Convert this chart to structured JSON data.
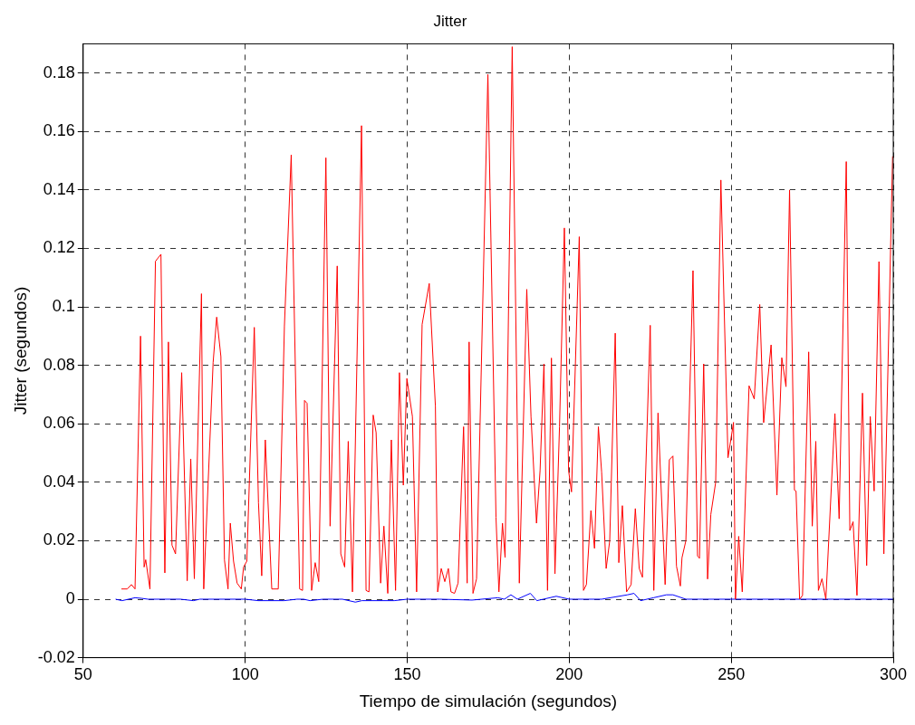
{
  "chart_data": {
    "type": "line",
    "title": "Jitter",
    "xlabel": "Tiempo de simulación (segundos)",
    "ylabel": "Jitter (segundos)",
    "xlim": [
      50,
      300
    ],
    "xticks": [
      50,
      100,
      150,
      200,
      250,
      300
    ],
    "ylim": [
      -0.02,
      0.19
    ],
    "yticks": [
      -0.02,
      0,
      0.02,
      0.04,
      0.06,
      0.08,
      0.1,
      0.12,
      0.14,
      0.16,
      0.18
    ],
    "grid": true,
    "legend": false,
    "marker": "none",
    "series": [
      {
        "color": "#ff0000",
        "x": [
          61.8,
          63.6,
          64.9,
          66,
          67.7,
          68.8,
          69.3,
          70.6,
          72.3,
          74,
          75.2,
          76.3,
          77.4,
          78.5,
          80.4,
          82.1,
          83.2,
          84.3,
          86.5,
          87.2,
          90.1,
          91.2,
          92.5,
          93.6,
          94.7,
          95.4,
          96.4,
          97.5,
          98.8,
          99.5,
          100.5,
          102.8,
          104.1,
          105.1,
          106.2,
          108.2,
          110.2,
          112.1,
          114.2,
          116.8,
          117.7,
          118.3,
          119.1,
          120.5,
          121.6,
          122.7,
          124.9,
          126.2,
          128.4,
          129.5,
          130.7,
          131.8,
          133.1,
          135.9,
          137.3,
          138.2,
          139.5,
          140.4,
          141.8,
          142.8,
          144,
          145.1,
          146.4,
          147.6,
          148.8,
          149.9,
          151.6,
          152.9,
          154.6,
          156.8,
          158.7,
          159.4,
          160.5,
          161.6,
          162.7,
          163.5,
          164.6,
          165.7,
          167.4,
          168.5,
          169.1,
          170.3,
          171.4,
          174.9,
          177.4,
          178.3,
          179.4,
          180.2,
          182.4,
          184.6,
          186.9,
          188.2,
          189.9,
          191,
          192.2,
          193.3,
          194.5,
          195.6,
          197,
          198.5,
          199.8,
          200.7,
          203.1,
          204.4,
          205.3,
          206.7,
          207.8,
          209,
          210,
          211.4,
          212.5,
          214.2,
          215.3,
          216.4,
          217.7,
          219.1,
          220.4,
          221.6,
          222.6,
          225,
          226.1,
          227.4,
          229.6,
          230.9,
          232,
          233.1,
          234.3,
          234.8,
          236,
          238.2,
          239.6,
          240.2,
          241.5,
          242.7,
          243.7,
          245.2,
          246.8,
          249,
          250.7,
          251.3,
          252.3,
          253.4,
          255.5,
          257.1,
          258.8,
          260,
          262.3,
          264.1,
          265.6,
          266.9,
          268,
          269.5,
          270,
          271.1,
          272,
          273.9,
          275,
          276.1,
          276.9,
          278,
          279.2,
          282,
          283.3,
          285.5,
          286.6,
          287.6,
          288.8,
          290.5,
          291.8,
          292.9,
          294.1,
          295.6,
          297.1,
          299.8
        ],
        "values": [
          0.0035,
          0.0035,
          0.005,
          0.0035,
          0.09,
          0.011,
          0.0135,
          0.0035,
          0.1156,
          0.118,
          0.009,
          0.088,
          0.0185,
          0.0155,
          0.0775,
          0.0063,
          0.048,
          0.007,
          0.1045,
          0.0035,
          0.081,
          0.0965,
          0.083,
          0.0134,
          0.0035,
          0.026,
          0.013,
          0.0055,
          0.0035,
          0.011,
          0.013,
          0.093,
          0.033,
          0.008,
          0.0545,
          0.0035,
          0.0035,
          0.0935,
          0.152,
          0.0035,
          0.003,
          0.068,
          0.067,
          0.003,
          0.0125,
          0.006,
          0.151,
          0.025,
          0.114,
          0.0155,
          0.011,
          0.054,
          0.0025,
          0.162,
          0.003,
          0.0025,
          0.063,
          0.057,
          0.0055,
          0.025,
          0.002,
          0.0545,
          0.003,
          0.0775,
          0.039,
          0.0755,
          0.0625,
          0.0025,
          0.094,
          0.108,
          0.066,
          0.0025,
          0.0105,
          0.006,
          0.0105,
          0.0025,
          0.002,
          0.0055,
          0.059,
          0.0055,
          0.088,
          0.002,
          0.007,
          0.1795,
          0.028,
          0.0025,
          0.026,
          0.0143,
          0.189,
          0.0055,
          0.106,
          0.0625,
          0.026,
          0.044,
          0.0805,
          0.003,
          0.0825,
          0.0087,
          0.059,
          0.127,
          0.044,
          0.0367,
          0.124,
          0.003,
          0.005,
          0.0303,
          0.0174,
          0.059,
          0.0435,
          0.0105,
          0.02,
          0.091,
          0.0125,
          0.032,
          0.0025,
          0.005,
          0.031,
          0.0105,
          0.0075,
          0.0937,
          0.003,
          0.0637,
          0.005,
          0.0477,
          0.049,
          0.0113,
          0.0045,
          0.0142,
          0.02,
          0.1124,
          0.0148,
          0.014,
          0.0805,
          0.0069,
          0.029,
          0.04,
          0.1434,
          0.0484,
          0.0605,
          0,
          0.0215,
          0.0025,
          0.073,
          0.0685,
          0.1008,
          0.0604,
          0.087,
          0.0356,
          0.0826,
          0.0727,
          0.14,
          0.0373,
          0.037,
          0,
          0.0013,
          0.0846,
          0.025,
          0.054,
          0.003,
          0.007,
          0,
          0.0635,
          0.0275,
          0.1497,
          0.0235,
          0.0265,
          0.0013,
          0.0705,
          0.0115,
          0.0625,
          0.037,
          0.1155,
          0.0155,
          0.1515
        ]
      },
      {
        "color": "#0000ff",
        "x": [
          60,
          62,
          66,
          68,
          70,
          80,
          84,
          86,
          100,
          104,
          112,
          116,
          118,
          120,
          124,
          130,
          134,
          136,
          146,
          150,
          160,
          170,
          178,
          180,
          182,
          184,
          188,
          190,
          192,
          196,
          200,
          202,
          210,
          218,
          220,
          222,
          226,
          230,
          232,
          236,
          240,
          300
        ],
        "values": [
          0,
          -0.0005,
          0.0005,
          0.0003,
          0,
          0,
          -0.0005,
          0,
          0,
          -0.0005,
          -0.0005,
          0,
          0,
          -0.0005,
          0,
          0,
          -0.001,
          -0.0005,
          -0.0005,
          0,
          0,
          -0.0003,
          0.0005,
          0,
          0.0015,
          0,
          0.002,
          -0.0005,
          0,
          0.001,
          0,
          0,
          0,
          0.0015,
          0.002,
          -0.0005,
          0.0005,
          0.0015,
          0.0015,
          0,
          0,
          0
        ]
      }
    ]
  }
}
